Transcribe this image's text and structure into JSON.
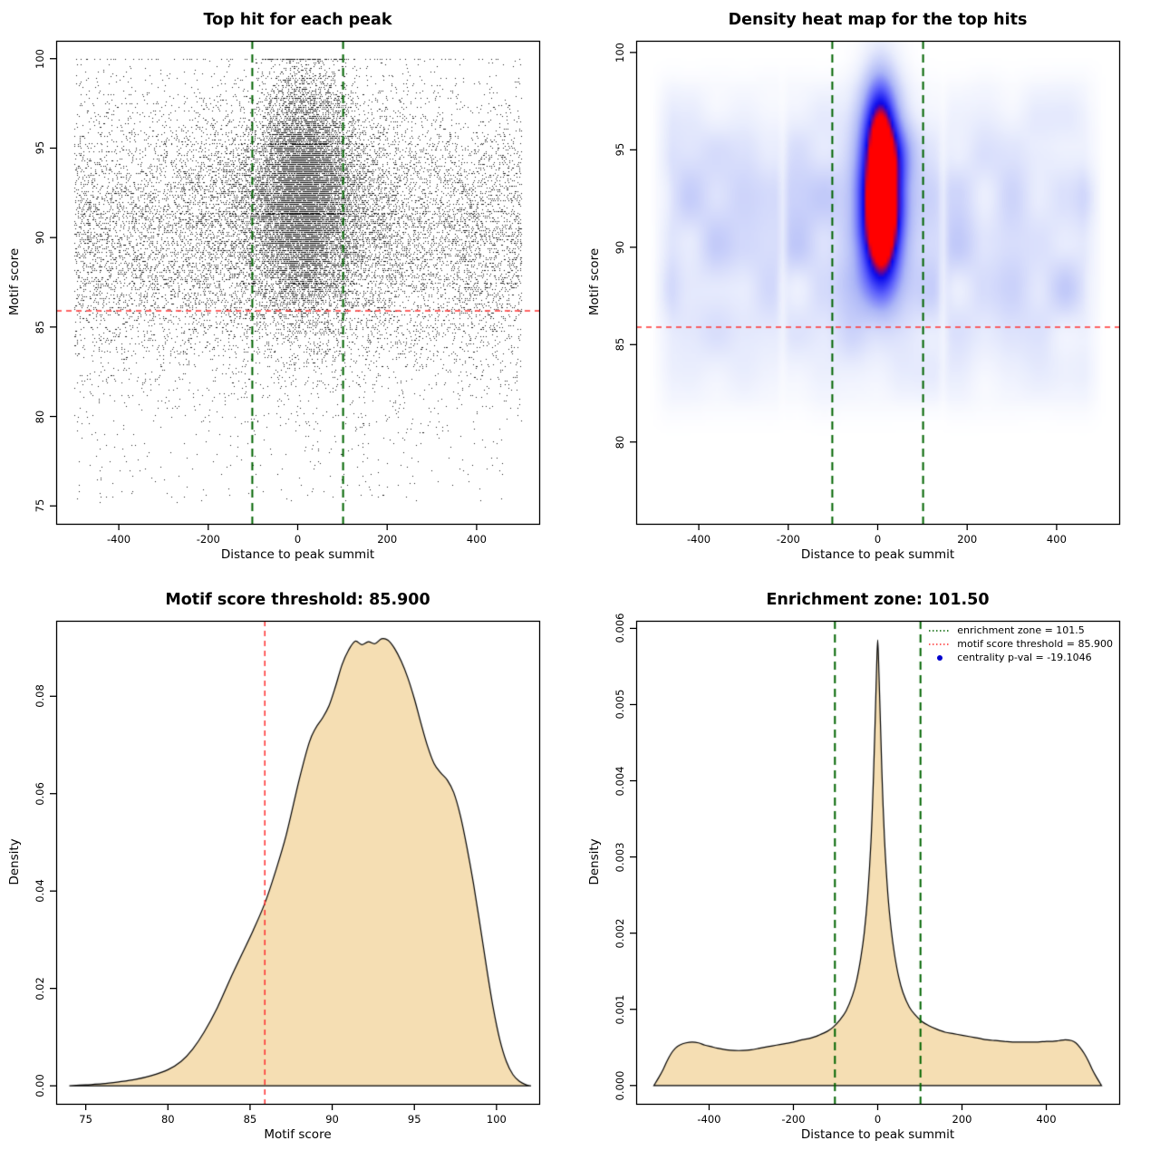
{
  "chart_data": [
    {
      "id": "top-hit-scatter",
      "type": "scatter",
      "title": "Top hit for each peak",
      "xlabel": "Distance to peak summit",
      "ylabel": "Motif score",
      "xlim": [
        -540,
        540
      ],
      "ylim": [
        74,
        101
      ],
      "xticks": [
        -400,
        -200,
        0,
        200,
        400
      ],
      "xtick_labels": [
        "-400",
        "-200",
        "0",
        "200",
        "400"
      ],
      "yticks": [
        75,
        80,
        85,
        90,
        95,
        100
      ],
      "ytick_labels": [
        "75",
        "80",
        "85",
        "90",
        "95",
        "100"
      ],
      "hlines": [
        {
          "y": 85.9,
          "color": "#FF3030",
          "width": 1.5,
          "dash": [
            6,
            5
          ]
        }
      ],
      "vlines": [
        {
          "x": -101.5,
          "color": "#006400",
          "width": 2,
          "dash": [
            9,
            6
          ]
        },
        {
          "x": 101.5,
          "color": "#006400",
          "width": 2,
          "dash": [
            9,
            6
          ]
        }
      ],
      "points": {
        "seed": 42,
        "color": "#000000",
        "alpha": 0.9,
        "y_quantum": 0.1,
        "y_clamp": [
          75,
          100
        ],
        "groups": [
          {
            "n": 12000,
            "x": {
              "dist": "uniform",
              "min": -500,
              "max": 500
            },
            "y": {
              "dist": "normal",
              "mean": 90.2,
              "sd": 3.9
            }
          },
          {
            "n": 5000,
            "x": {
              "dist": "normal",
              "mean": 10,
              "sd": 120
            },
            "y": {
              "dist": "normal",
              "mean": 91.6,
              "sd": 3.4
            }
          },
          {
            "n": 9000,
            "x": {
              "dist": "normal",
              "mean": 15,
              "sd": 48
            },
            "y": {
              "dist": "normal",
              "mean": 92.8,
              "sd": 3.1
            }
          },
          {
            "n": 500,
            "x": {
              "dist": "uniform",
              "min": -500,
              "max": 500
            },
            "y": {
              "dist": "uniform",
              "min": 75.2,
              "max": 86
            }
          }
        ]
      }
    },
    {
      "id": "density-heatmap",
      "type": "heatmap",
      "title": "Density heat map for the top hits",
      "xlabel": "Distance to peak summit",
      "ylabel": "Motif score",
      "xlim": [
        -540,
        540
      ],
      "ylim": [
        75.8,
        100.6
      ],
      "xticks": [
        -400,
        -200,
        0,
        200,
        400
      ],
      "xtick_labels": [
        "-400",
        "-200",
        "0",
        "200",
        "400"
      ],
      "yticks": [
        80,
        85,
        90,
        95,
        100
      ],
      "ytick_labels": [
        "80",
        "85",
        "90",
        "95",
        "100"
      ],
      "hlines": [
        {
          "y": 85.9,
          "color": "#FF3030",
          "width": 1.5,
          "dash": [
            6,
            5
          ]
        }
      ],
      "vlines": [
        {
          "x": -101.5,
          "color": "#006400",
          "width": 2,
          "dash": [
            9,
            6
          ]
        },
        {
          "x": 101.5,
          "color": "#006400",
          "width": 2,
          "dash": [
            9,
            6
          ]
        }
      ],
      "field": {
        "seed": 11,
        "bands": [
          {
            "y": 90.6,
            "sd": 3.6,
            "amp": 0.42
          },
          {
            "y": 86.2,
            "sd": 2.3,
            "amp": 0.18
          },
          {
            "y": 95.3,
            "sd": 2.2,
            "amp": 0.2
          },
          {
            "y": 83.3,
            "sd": 1.7,
            "amp": 0.08
          }
        ],
        "noise_scale_x": 60,
        "noise_scale_y": 2.4,
        "noise_amp": 0.5,
        "streaks": [
          -213,
          146
        ],
        "streak_sd": 7,
        "streak_depth": 0.45,
        "blobs": [
          {
            "x": 8,
            "y": 93.1,
            "sx": 36,
            "sy": 3.0,
            "amp": 2.45
          },
          {
            "x": 5,
            "y": 96.9,
            "sx": 27,
            "sy": 1.9,
            "amp": 0.95
          },
          {
            "x": 10,
            "y": 90.3,
            "sx": 32,
            "sy": 2.1,
            "amp": 0.8
          }
        ],
        "t_max": 2.35,
        "ramp_pos": [
          0,
          0.12,
          0.38,
          0.6,
          0.8,
          0.95,
          1
        ],
        "ramp_colors": [
          [
            255,
            255,
            255
          ],
          [
            233,
            237,
            253
          ],
          [
            172,
            182,
            247
          ],
          [
            92,
            96,
            252
          ],
          [
            8,
            8,
            238
          ],
          [
            255,
            0,
            0
          ],
          [
            255,
            0,
            0
          ]
        ]
      }
    },
    {
      "id": "motif-score-density",
      "type": "density",
      "title": "Motif score threshold: 85.900",
      "xlabel": "Motif score",
      "ylabel": "Density",
      "xlim": [
        73.2,
        102.6
      ],
      "ylim": [
        -0.0037,
        0.0955
      ],
      "xticks": [
        75,
        80,
        85,
        90,
        95,
        100
      ],
      "xtick_labels": [
        "75",
        "80",
        "85",
        "90",
        "95",
        "100"
      ],
      "yticks": [
        0,
        0.02,
        0.04,
        0.06,
        0.08
      ],
      "ytick_labels": [
        "0.00",
        "0.02",
        "0.04",
        "0.06",
        "0.08"
      ],
      "fill": "#F5DEB3",
      "vlines": [
        {
          "x": 85.9,
          "color": "#FF3030",
          "width": 1.5,
          "dash": [
            6,
            5
          ]
        }
      ],
      "curve": [
        [
          74,
          0
        ],
        [
          75,
          0.0002
        ],
        [
          76,
          0.0004
        ],
        [
          77,
          0.0008
        ],
        [
          78,
          0.0013
        ],
        [
          79,
          0.0021
        ],
        [
          80,
          0.0033
        ],
        [
          80.8,
          0.005
        ],
        [
          81.5,
          0.0075
        ],
        [
          82.2,
          0.011
        ],
        [
          83,
          0.016
        ],
        [
          83.8,
          0.022
        ],
        [
          84.5,
          0.027
        ],
        [
          85.2,
          0.032
        ],
        [
          85.9,
          0.0375
        ],
        [
          86.5,
          0.0435
        ],
        [
          87.2,
          0.0515
        ],
        [
          88,
          0.063
        ],
        [
          88.6,
          0.0705
        ],
        [
          89,
          0.0735
        ],
        [
          89.4,
          0.0755
        ],
        [
          89.8,
          0.078
        ],
        [
          90.2,
          0.082
        ],
        [
          90.6,
          0.0865
        ],
        [
          91,
          0.0895
        ],
        [
          91.4,
          0.0913
        ],
        [
          91.8,
          0.0906
        ],
        [
          92.2,
          0.0912
        ],
        [
          92.6,
          0.0908
        ],
        [
          93,
          0.0918
        ],
        [
          93.4,
          0.0915
        ],
        [
          93.8,
          0.0898
        ],
        [
          94.2,
          0.0872
        ],
        [
          94.6,
          0.0838
        ],
        [
          95,
          0.0795
        ],
        [
          95.4,
          0.0745
        ],
        [
          95.8,
          0.0698
        ],
        [
          96.2,
          0.0662
        ],
        [
          96.6,
          0.0643
        ],
        [
          97,
          0.0628
        ],
        [
          97.4,
          0.0602
        ],
        [
          97.8,
          0.0555
        ],
        [
          98.2,
          0.049
        ],
        [
          98.6,
          0.0415
        ],
        [
          99,
          0.033
        ],
        [
          99.4,
          0.0242
        ],
        [
          99.8,
          0.016
        ],
        [
          100.2,
          0.0095
        ],
        [
          100.6,
          0.005
        ],
        [
          101,
          0.0023
        ],
        [
          101.4,
          0.0009
        ],
        [
          101.8,
          0.0002
        ],
        [
          102.1,
          0
        ]
      ]
    },
    {
      "id": "distance-density",
      "type": "density",
      "title": "Enrichment zone: 101.50",
      "xlabel": "Distance to peak summit",
      "ylabel": "Density",
      "xlim": [
        -573,
        573
      ],
      "ylim": [
        -0.00024,
        0.0061
      ],
      "xticks": [
        -400,
        -200,
        0,
        200,
        400
      ],
      "xtick_labels": [
        "-400",
        "-200",
        "0",
        "200",
        "400"
      ],
      "yticks": [
        0,
        0.001,
        0.002,
        0.003,
        0.004,
        0.005,
        0.006
      ],
      "ytick_labels": [
        "0.000",
        "0.001",
        "0.002",
        "0.003",
        "0.004",
        "0.005",
        "0.006"
      ],
      "fill": "#F5DEB3",
      "vlines": [
        {
          "x": -101.5,
          "color": "#006400",
          "width": 2,
          "dash": [
            9,
            6
          ]
        },
        {
          "x": 101.5,
          "color": "#006400",
          "width": 2,
          "dash": [
            9,
            6
          ]
        }
      ],
      "curve": [
        [
          -531,
          0
        ],
        [
          -520,
          0.0001
        ],
        [
          -510,
          0.0002
        ],
        [
          -500,
          0.00032
        ],
        [
          -490,
          0.00042
        ],
        [
          -480,
          0.00049
        ],
        [
          -470,
          0.00053
        ],
        [
          -455,
          0.00056
        ],
        [
          -440,
          0.00057
        ],
        [
          -425,
          0.00056
        ],
        [
          -410,
          0.00053
        ],
        [
          -395,
          0.00051
        ],
        [
          -380,
          0.00049
        ],
        [
          -360,
          0.00047
        ],
        [
          -340,
          0.00046
        ],
        [
          -320,
          0.00046
        ],
        [
          -300,
          0.00047
        ],
        [
          -280,
          0.00049
        ],
        [
          -260,
          0.00051
        ],
        [
          -240,
          0.00053
        ],
        [
          -220,
          0.00055
        ],
        [
          -200,
          0.00057
        ],
        [
          -180,
          0.0006
        ],
        [
          -160,
          0.00062
        ],
        [
          -140,
          0.00066
        ],
        [
          -120,
          0.00071
        ],
        [
          -105,
          0.00077
        ],
        [
          -90,
          0.00086
        ],
        [
          -75,
          0.00098
        ],
        [
          -60,
          0.00118
        ],
        [
          -50,
          0.00138
        ],
        [
          -40,
          0.00168
        ],
        [
          -32,
          0.002
        ],
        [
          -24,
          0.00248
        ],
        [
          -16,
          0.0032
        ],
        [
          -10,
          0.00406
        ],
        [
          -6,
          0.0048
        ],
        [
          -3,
          0.0054
        ],
        [
          0,
          0.00585
        ],
        [
          3,
          0.0054
        ],
        [
          6,
          0.00485
        ],
        [
          10,
          0.0041
        ],
        [
          16,
          0.00325
        ],
        [
          24,
          0.00252
        ],
        [
          32,
          0.00205
        ],
        [
          40,
          0.00172
        ],
        [
          50,
          0.00142
        ],
        [
          60,
          0.00122
        ],
        [
          75,
          0.00103
        ],
        [
          90,
          0.00092
        ],
        [
          105,
          0.00084
        ],
        [
          120,
          0.00079
        ],
        [
          140,
          0.00074
        ],
        [
          160,
          0.0007
        ],
        [
          180,
          0.00068
        ],
        [
          200,
          0.00066
        ],
        [
          220,
          0.00064
        ],
        [
          240,
          0.00062
        ],
        [
          260,
          0.0006
        ],
        [
          280,
          0.00059
        ],
        [
          300,
          0.00058
        ],
        [
          320,
          0.00057
        ],
        [
          340,
          0.00057
        ],
        [
          360,
          0.00057
        ],
        [
          380,
          0.00057
        ],
        [
          400,
          0.00058
        ],
        [
          415,
          0.00058
        ],
        [
          430,
          0.00059
        ],
        [
          445,
          0.0006
        ],
        [
          460,
          0.00059
        ],
        [
          470,
          0.00056
        ],
        [
          480,
          0.0005
        ],
        [
          490,
          0.00042
        ],
        [
          500,
          0.00032
        ],
        [
          510,
          0.0002
        ],
        [
          520,
          0.0001
        ],
        [
          531,
          0
        ]
      ],
      "legend": [
        {
          "sample": "line",
          "color": "#006400",
          "label": "enrichment zone = 101.5"
        },
        {
          "sample": "line",
          "color": "#FF3030",
          "label": "motif score threshold = 85.900"
        },
        {
          "sample": "point",
          "color": "#0000CD",
          "label": "centrality p-val = -19.1046"
        }
      ]
    }
  ]
}
